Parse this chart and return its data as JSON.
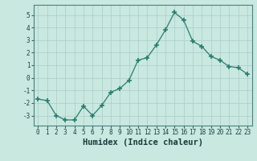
{
  "x": [
    0,
    1,
    2,
    3,
    4,
    5,
    6,
    7,
    8,
    9,
    10,
    11,
    12,
    13,
    14,
    15,
    16,
    17,
    18,
    19,
    20,
    21,
    22,
    23
  ],
  "y": [
    -1.7,
    -1.8,
    -3.0,
    -3.35,
    -3.35,
    -2.25,
    -3.0,
    -2.2,
    -1.15,
    -0.85,
    -0.2,
    1.4,
    1.6,
    2.6,
    3.8,
    5.2,
    4.6,
    2.9,
    2.5,
    1.7,
    1.4,
    0.9,
    0.8,
    0.3
  ],
  "line_color": "#2a7d6e",
  "marker": "+",
  "marker_size": 4,
  "bg_color": "#c8e8e0",
  "grid_color": "#b0d0cc",
  "xlabel": "Humidex (Indice chaleur)",
  "ylim": [
    -3.8,
    5.8
  ],
  "xlim": [
    -0.5,
    23.5
  ],
  "yticks": [
    -3,
    -2,
    -1,
    0,
    1,
    2,
    3,
    4,
    5
  ],
  "xticks": [
    0,
    1,
    2,
    3,
    4,
    5,
    6,
    7,
    8,
    9,
    10,
    11,
    12,
    13,
    14,
    15,
    16,
    17,
    18,
    19,
    20,
    21,
    22,
    23
  ],
  "tick_fontsize": 5.5,
  "xlabel_fontsize": 7.5
}
